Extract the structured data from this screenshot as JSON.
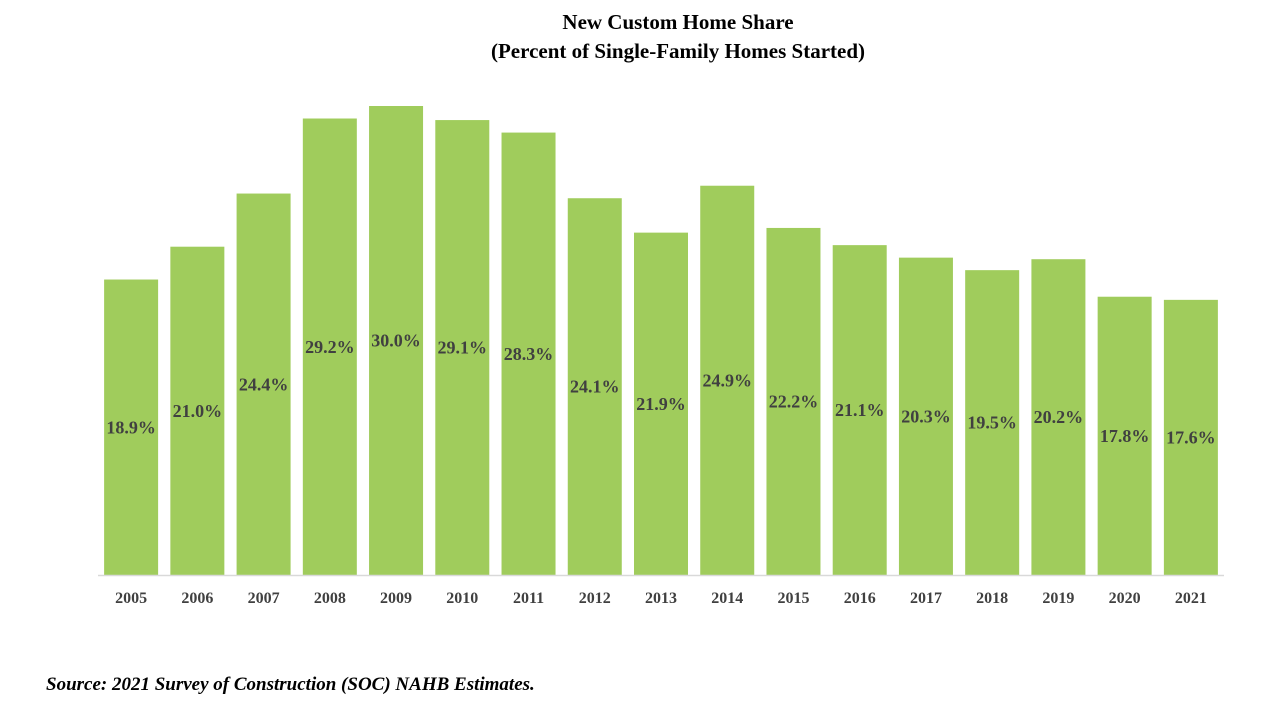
{
  "chart_data": {
    "type": "bar",
    "title": "New Custom Home Share",
    "subtitle": "(Percent of Single-Family Homes Started)",
    "categories": [
      "2005",
      "2006",
      "2007",
      "2008",
      "2009",
      "2010",
      "2011",
      "2012",
      "2013",
      "2014",
      "2015",
      "2016",
      "2017",
      "2018",
      "2019",
      "2020",
      "2021"
    ],
    "values": [
      18.9,
      21.0,
      24.4,
      29.2,
      30.0,
      29.1,
      28.3,
      24.1,
      21.9,
      24.9,
      22.2,
      21.1,
      20.3,
      19.5,
      20.2,
      17.8,
      17.6
    ],
    "data_labels": [
      "18.9%",
      "21.0%",
      "24.4%",
      "29.2%",
      "30.0%",
      "29.1%",
      "28.3%",
      "24.1%",
      "21.9%",
      "24.9%",
      "22.2%",
      "21.1%",
      "20.3%",
      "19.5%",
      "20.2%",
      "17.8%",
      "17.6%"
    ],
    "xlabel": "",
    "ylabel": "",
    "ylim": [
      0,
      30
    ],
    "grid": false,
    "legend": "none",
    "bar_color": "#a0cc5c",
    "label_color": "#404040",
    "axis_color": "#d9d9d9"
  },
  "source_note": "Source: 2021 Survey of Construction (SOC) NAHB Estimates."
}
